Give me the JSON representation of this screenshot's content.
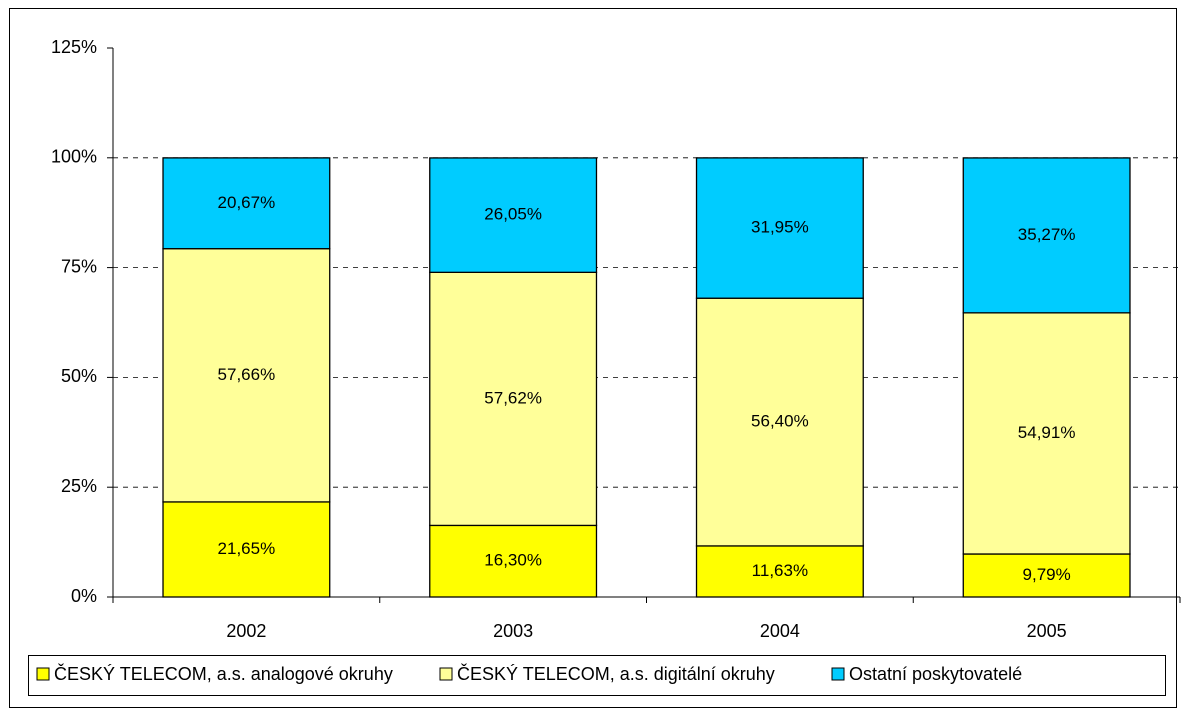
{
  "chart_data": {
    "type": "stacked_bar",
    "categories": [
      "2002",
      "2003",
      "2004",
      "2005"
    ],
    "series": [
      {
        "name": "ČESKÝ TELECOM, a.s. analogové okruhy",
        "color": "#ffff00",
        "values": [
          21.65,
          16.3,
          11.63,
          9.79
        ],
        "value_labels": [
          "21,65%",
          "16,30%",
          "11,63%",
          "9,79%"
        ]
      },
      {
        "name": "ČESKÝ TELECOM, a.s. digitální okruhy",
        "color": "#ffff99",
        "values": [
          57.66,
          57.62,
          56.4,
          54.91
        ],
        "value_labels": [
          "57,66%",
          "57,62%",
          "56,40%",
          "54,91%"
        ]
      },
      {
        "name": "Ostatní poskytovatelé",
        "color": "#00ccff",
        "values": [
          20.67,
          26.05,
          31.95,
          35.27
        ],
        "value_labels": [
          "20,67%",
          "26,05%",
          "31,95%",
          "35,27%"
        ]
      }
    ],
    "ylim": [
      0,
      125
    ],
    "yticks": [
      {
        "value": 0,
        "label": "0%"
      },
      {
        "value": 25,
        "label": "25%"
      },
      {
        "value": 50,
        "label": "50%"
      },
      {
        "value": 75,
        "label": "75%"
      },
      {
        "value": 100,
        "label": "100%"
      },
      {
        "value": 125,
        "label": "125%"
      }
    ],
    "grid": true,
    "legend": "bottom"
  }
}
